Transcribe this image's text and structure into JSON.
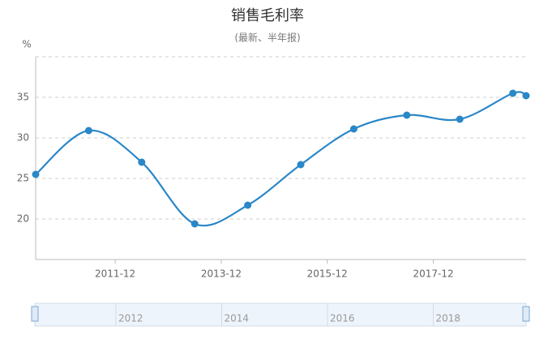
{
  "chart_data": {
    "type": "line",
    "title": "销售毛利率",
    "subtitle": "(最新、半年报)",
    "y_label": "%",
    "x": [
      2010.5,
      2011.5,
      2012.5,
      2013.5,
      2014.5,
      2015.5,
      2016.5,
      2017.5,
      2018.5,
      2019.5,
      2019.75
    ],
    "series": [
      {
        "color": "#2a87c8",
        "values": [
          25.5,
          30.9,
          27.0,
          19.4,
          21.7,
          26.7,
          31.1,
          32.8,
          32.3,
          35.5,
          35.2
        ]
      }
    ],
    "xlim": [
      2010.5,
      2019.75
    ],
    "xticks": [
      {
        "value": 2012,
        "label": "2011-12"
      },
      {
        "value": 2014,
        "label": "2013-12"
      },
      {
        "value": 2016,
        "label": "2015-12"
      },
      {
        "value": 2018,
        "label": "2017-12"
      }
    ],
    "ylim": [
      15,
      40
    ],
    "yticks": [
      20,
      25,
      30,
      35
    ],
    "grid": true,
    "zoom_labels": [
      "2012",
      "2014",
      "2016",
      "2018"
    ]
  }
}
